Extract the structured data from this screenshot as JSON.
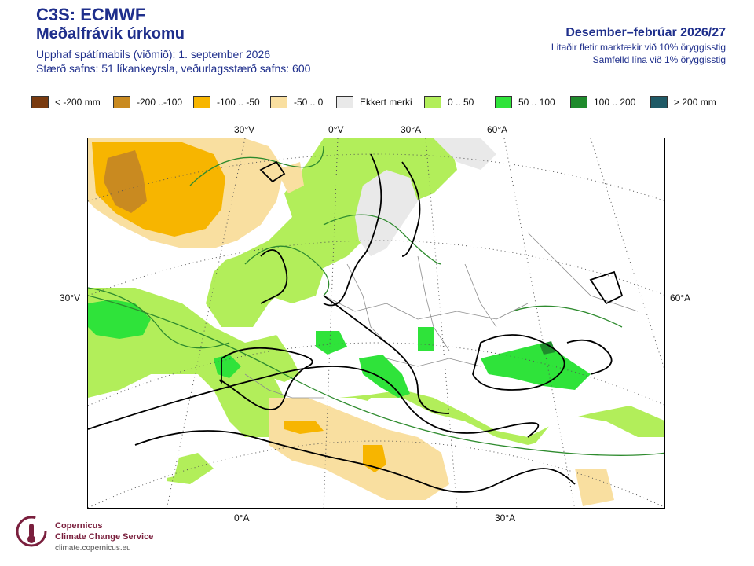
{
  "header": {
    "title": "C3S: ECMWF",
    "subtitle": "Meðalfrávik úrkomu",
    "line1": "Upphaf spátímabils (viðmið): 1. september 2026",
    "line2": "Stærð safns: 51 líkankeyrsla, veðurlagsstærð safns: 600",
    "season": "Desember–febrúar 2026/27",
    "note1": "Litaðir fletir marktækir við 10% öryggisstig",
    "note2": "Samfelld lína við 1% öryggisstig"
  },
  "legend": [
    {
      "label": "< -200 mm",
      "color": "#7a3b10"
    },
    {
      "label": "-200 ..-100",
      "color": "#c98a20"
    },
    {
      "label": "-100 .. -50",
      "color": "#f7b500"
    },
    {
      "label": "-50 .. 0",
      "color": "#f9dfa0"
    },
    {
      "label": "Ekkert merki",
      "color": "#e9e9e9"
    },
    {
      "label": "0 .. 50",
      "color": "#b2ee5a"
    },
    {
      "label": "50 .. 100",
      "color": "#2fe33a"
    },
    {
      "label": "100 .. 200",
      "color": "#1f8b2c"
    },
    {
      "label": "> 200 mm",
      "color": "#1f5a66"
    }
  ],
  "map_labels": {
    "top": [
      "30°V",
      "0°V",
      "30°A",
      "60°A"
    ],
    "left": "30°V",
    "right": "60°A",
    "bottom": [
      "0°A",
      "30°A"
    ]
  },
  "footer": {
    "brand1": "Copernicus",
    "brand2": "Climate Change Service",
    "url": "climate.copernicus.eu"
  }
}
